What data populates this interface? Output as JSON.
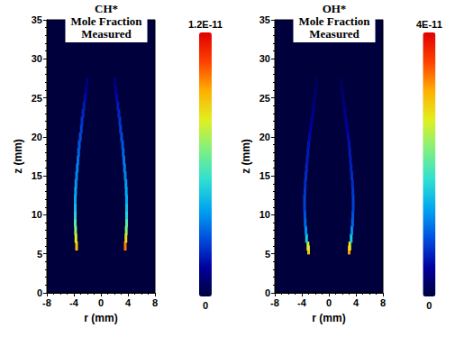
{
  "chart_data": [
    {
      "type": "heatmap",
      "title": "CH*\nMole Fraction\nMeasured",
      "x_label": "r (mm)",
      "y_label": "z (mm)",
      "xlim": [
        -8,
        8
      ],
      "xticks": [
        -8,
        -4,
        0,
        4,
        8
      ],
      "ylim": [
        0,
        35
      ],
      "yticks": [
        0,
        5,
        10,
        15,
        20,
        25,
        30,
        35
      ],
      "colorbar": {
        "range": [
          0,
          1.2e-11
        ],
        "ticks": [
          0,
          {
            "value": 1.2e-11,
            "label": "1.2E-11"
          }
        ]
      },
      "cells": [
        [
          -3.6,
          6,
          9e-12
        ],
        [
          -3.7,
          7,
          8e-12
        ],
        [
          -3.75,
          8,
          7e-12
        ],
        [
          -3.8,
          9,
          6e-12
        ],
        [
          -3.8,
          10,
          5e-12
        ],
        [
          -3.8,
          11,
          4.5e-12
        ],
        [
          -3.8,
          12,
          4e-12
        ],
        [
          -3.75,
          13,
          4e-12
        ],
        [
          -3.7,
          14,
          3.8e-12
        ],
        [
          -3.6,
          15,
          3.5e-12
        ],
        [
          -3.5,
          16,
          3.5e-12
        ],
        [
          -3.4,
          17,
          3.2e-12
        ],
        [
          -3.3,
          18,
          3e-12
        ],
        [
          -3.2,
          19,
          2.8e-12
        ],
        [
          -3.05,
          20,
          2.6e-12
        ],
        [
          -2.9,
          21,
          2.4e-12
        ],
        [
          -2.8,
          22,
          2.2e-12
        ],
        [
          -2.65,
          23,
          2e-12
        ],
        [
          -2.5,
          24,
          1.8e-12
        ],
        [
          -2.35,
          25,
          1.5e-12
        ],
        [
          -2.2,
          26,
          1.2e-12
        ],
        [
          -2.05,
          27,
          8e-13
        ],
        [
          3.6,
          6,
          1e-11
        ],
        [
          3.7,
          7,
          8.5e-12
        ],
        [
          3.75,
          8,
          7e-12
        ],
        [
          3.8,
          9,
          6e-12
        ],
        [
          3.8,
          10,
          5e-12
        ],
        [
          3.8,
          11,
          4.5e-12
        ],
        [
          3.8,
          12,
          4e-12
        ],
        [
          3.75,
          13,
          4e-12
        ],
        [
          3.7,
          14,
          3.8e-12
        ],
        [
          3.6,
          15,
          3.5e-12
        ],
        [
          3.5,
          16,
          3.4e-12
        ],
        [
          3.4,
          17,
          3.2e-12
        ],
        [
          3.3,
          18,
          3e-12
        ],
        [
          3.2,
          19,
          2.8e-12
        ],
        [
          3.05,
          20,
          2.6e-12
        ],
        [
          2.9,
          21,
          2.4e-12
        ],
        [
          2.8,
          22,
          2.2e-12
        ],
        [
          2.65,
          23,
          2e-12
        ],
        [
          2.5,
          24,
          1.8e-12
        ],
        [
          2.35,
          25,
          1.5e-12
        ],
        [
          2.2,
          26,
          1.2e-12
        ],
        [
          2.05,
          27,
          8e-13
        ]
      ]
    },
    {
      "type": "heatmap",
      "title": "OH*\nMole Fraction\nMeasured",
      "x_label": "r (mm)",
      "y_label": "z (mm)",
      "xlim": [
        -8,
        8
      ],
      "xticks": [
        -8,
        -4,
        0,
        4,
        8
      ],
      "ylim": [
        0,
        35
      ],
      "yticks": [
        0,
        5,
        10,
        15,
        20,
        25,
        30,
        35
      ],
      "colorbar": {
        "range": [
          0,
          4e-11
        ],
        "ticks": [
          0,
          {
            "value": 4e-11,
            "label": "4E-11"
          }
        ]
      },
      "cells": [
        [
          -3.0,
          5.5,
          3e-11
        ],
        [
          -3.1,
          6,
          2.6e-11
        ],
        [
          -3.3,
          7,
          1.6e-11
        ],
        [
          -3.4,
          8,
          1.2e-11
        ],
        [
          -3.5,
          9,
          1e-11
        ],
        [
          -3.55,
          10,
          9e-12
        ],
        [
          -3.6,
          11,
          8e-12
        ],
        [
          -3.6,
          12,
          8e-12
        ],
        [
          -3.55,
          13,
          7.5e-12
        ],
        [
          -3.5,
          14,
          7e-12
        ],
        [
          -3.4,
          15,
          7e-12
        ],
        [
          -3.3,
          16,
          6.5e-12
        ],
        [
          -3.2,
          17,
          6e-12
        ],
        [
          -3.1,
          18,
          6e-12
        ],
        [
          -3.0,
          19,
          5.5e-12
        ],
        [
          -2.85,
          20,
          5e-12
        ],
        [
          -2.7,
          21,
          4.5e-12
        ],
        [
          -2.55,
          22,
          4e-12
        ],
        [
          -2.4,
          23,
          3.5e-12
        ],
        [
          -2.25,
          24,
          3e-12
        ],
        [
          -2.1,
          25,
          2.5e-12
        ],
        [
          -1.95,
          26,
          2e-12
        ],
        [
          -1.8,
          27,
          1.5e-12
        ],
        [
          3.0,
          5.5,
          3.2e-11
        ],
        [
          3.1,
          6,
          2.7e-11
        ],
        [
          3.3,
          7,
          1.6e-11
        ],
        [
          3.4,
          8,
          1.2e-11
        ],
        [
          3.5,
          9,
          1e-11
        ],
        [
          3.55,
          10,
          9e-12
        ],
        [
          3.6,
          11,
          8e-12
        ],
        [
          3.6,
          12,
          8e-12
        ],
        [
          3.55,
          13,
          7.5e-12
        ],
        [
          3.5,
          14,
          7e-12
        ],
        [
          3.4,
          15,
          7e-12
        ],
        [
          3.3,
          16,
          6.5e-12
        ],
        [
          3.2,
          17,
          6e-12
        ],
        [
          3.1,
          18,
          6e-12
        ],
        [
          3.0,
          19,
          5.5e-12
        ],
        [
          2.85,
          20,
          5e-12
        ],
        [
          2.7,
          21,
          4.5e-12
        ],
        [
          2.55,
          22,
          4e-12
        ],
        [
          2.4,
          23,
          3.5e-12
        ],
        [
          2.25,
          24,
          3e-12
        ],
        [
          2.1,
          25,
          2.5e-12
        ],
        [
          1.95,
          26,
          2e-12
        ],
        [
          1.8,
          27,
          1.5e-12
        ]
      ]
    }
  ]
}
